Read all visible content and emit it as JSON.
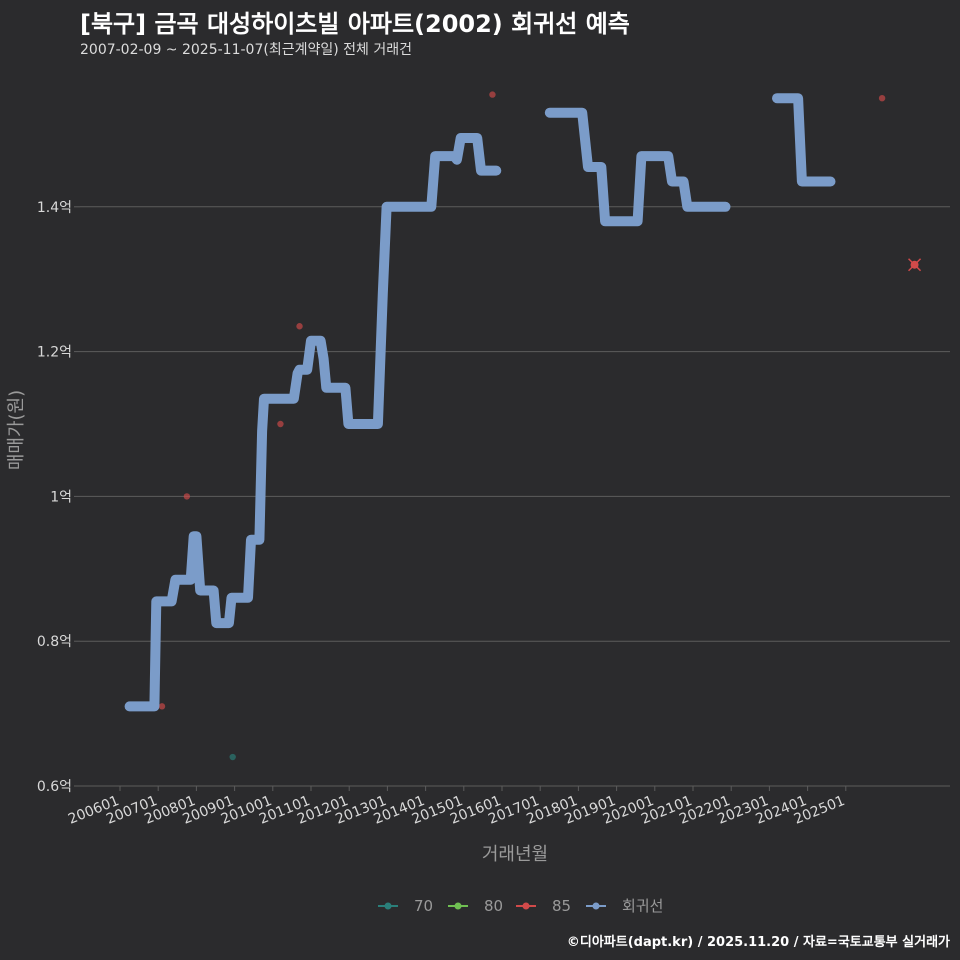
{
  "title": "[북구] 금곡 대성하이츠빌 아파트(2002) 회귀선 예측",
  "subtitle": "2007-02-09 ~ 2025-11-07(최근계약일) 전체 거래건",
  "footer": "©디아파트(dapt.kr) / 2025.11.20 / 자료=국토교통부 실거래가",
  "colors": {
    "background": "#2b2b2d",
    "grid": "#5c5c5c",
    "regression": "#7b9cc9",
    "s70": "#2a7f7a",
    "s80": "#6fbf52",
    "s85": "#d14a4a"
  },
  "chart_data": {
    "type": "line",
    "xlabel": "거래년월",
    "ylabel": "매매가(원)",
    "ylim": [
      0.6,
      1.6
    ],
    "y_ticks": [
      {
        "value": 0.6,
        "label": "0.6억"
      },
      {
        "value": 0.8,
        "label": "0.8억"
      },
      {
        "value": 1.0,
        "label": "1억"
      },
      {
        "value": 1.2,
        "label": "1.2억"
      },
      {
        "value": 1.4,
        "label": "1.4억"
      }
    ],
    "x_ticks": [
      {
        "t": 2006.0,
        "label": "200601"
      },
      {
        "t": 2007.0,
        "label": "200701"
      },
      {
        "t": 2008.0,
        "label": "200801"
      },
      {
        "t": 2009.0,
        "label": "200901"
      },
      {
        "t": 2010.0,
        "label": "201001"
      },
      {
        "t": 2011.0,
        "label": "201101"
      },
      {
        "t": 2012.0,
        "label": "201201"
      },
      {
        "t": 2013.0,
        "label": "201301"
      },
      {
        "t": 2014.0,
        "label": "201401"
      },
      {
        "t": 2015.0,
        "label": "201501"
      },
      {
        "t": 2016.0,
        "label": "201601"
      },
      {
        "t": 2017.0,
        "label": "201701"
      },
      {
        "t": 2018.0,
        "label": "201801"
      },
      {
        "t": 2019.0,
        "label": "201901"
      },
      {
        "t": 2020.0,
        "label": "202001"
      },
      {
        "t": 2021.0,
        "label": "202101"
      },
      {
        "t": 2022.0,
        "label": "202201"
      },
      {
        "t": 2023.0,
        "label": "202301"
      },
      {
        "t": 2024.0,
        "label": "202401"
      },
      {
        "t": 2025.0,
        "label": "202501"
      }
    ],
    "legend": [
      {
        "name": "70",
        "color": "#2a7f7a"
      },
      {
        "name": "80",
        "color": "#6fbf52"
      },
      {
        "name": "85",
        "color": "#d14a4a"
      },
      {
        "name": "회귀선",
        "color": "#7b9cc9"
      }
    ],
    "legend_position": "bottom",
    "regression_segments": [
      [
        [
          2006.25,
          0.71
        ],
        [
          2006.75,
          0.71
        ],
        [
          2006.9,
          0.71
        ],
        [
          2006.95,
          0.855
        ],
        [
          2007.35,
          0.855
        ],
        [
          2007.45,
          0.885
        ],
        [
          2007.85,
          0.885
        ],
        [
          2007.93,
          0.945
        ],
        [
          2008.0,
          0.945
        ],
        [
          2008.1,
          0.87
        ],
        [
          2008.45,
          0.87
        ],
        [
          2008.52,
          0.825
        ],
        [
          2008.85,
          0.825
        ],
        [
          2008.92,
          0.86
        ],
        [
          2009.35,
          0.86
        ],
        [
          2009.43,
          0.94
        ],
        [
          2009.65,
          0.94
        ],
        [
          2009.72,
          1.09
        ],
        [
          2009.77,
          1.135
        ],
        [
          2010.55,
          1.135
        ],
        [
          2010.65,
          1.17
        ],
        [
          2010.7,
          1.175
        ],
        [
          2010.9,
          1.175
        ],
        [
          2011.0,
          1.215
        ],
        [
          2011.25,
          1.215
        ],
        [
          2011.33,
          1.19
        ],
        [
          2011.4,
          1.15
        ],
        [
          2011.9,
          1.15
        ],
        [
          2011.98,
          1.1
        ],
        [
          2012.75,
          1.1
        ],
        [
          2012.88,
          1.28
        ],
        [
          2012.98,
          1.4
        ],
        [
          2014.15,
          1.4
        ],
        [
          2014.25,
          1.47
        ],
        [
          2014.75,
          1.47
        ],
        [
          2014.82,
          1.465
        ],
        [
          2014.92,
          1.495
        ],
        [
          2015.35,
          1.495
        ],
        [
          2015.45,
          1.45
        ],
        [
          2015.85,
          1.45
        ]
      ],
      [
        [
          2017.25,
          1.53
        ],
        [
          2018.1,
          1.53
        ],
        [
          2018.25,
          1.455
        ],
        [
          2018.6,
          1.455
        ],
        [
          2018.7,
          1.38
        ],
        [
          2019.55,
          1.38
        ],
        [
          2019.65,
          1.47
        ],
        [
          2020.35,
          1.47
        ],
        [
          2020.45,
          1.435
        ],
        [
          2020.75,
          1.435
        ],
        [
          2020.85,
          1.4
        ],
        [
          2021.85,
          1.4
        ]
      ],
      [
        [
          2023.2,
          1.55
        ],
        [
          2023.75,
          1.55
        ],
        [
          2023.85,
          1.435
        ],
        [
          2024.6,
          1.435
        ]
      ]
    ],
    "series": [
      {
        "name": "70",
        "points": [
          [
            2008.95,
            0.64
          ]
        ]
      },
      {
        "name": "80",
        "points": []
      },
      {
        "name": "85",
        "points": [
          [
            2007.1,
            0.71
          ],
          [
            2007.75,
            1.0
          ],
          [
            2010.2,
            1.1
          ],
          [
            2010.7,
            1.235
          ],
          [
            2015.75,
            1.555
          ],
          [
            2025.95,
            1.55
          ],
          [
            2026.8,
            1.32
          ]
        ]
      }
    ],
    "last_trade_marker": {
      "x": 2026.8,
      "y": 1.32
    }
  }
}
